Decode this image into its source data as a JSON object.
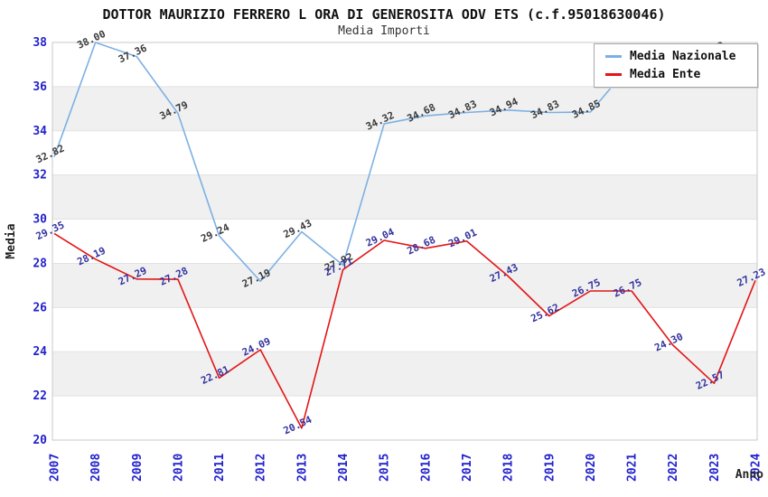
{
  "title": "DOTTOR MAURIZIO FERRERO L ORA DI GENEROSITA ODV ETS (c.f.95018630046)",
  "subtitle": "Media Importi",
  "colors": {
    "nazionale_line": "#7cb0e4",
    "ente_line": "#e31515",
    "tick_label_blue": "#2222cc",
    "band_gray": "#f0f0f0",
    "gridline": "#e2e2e2",
    "plot_border": "#c9c9c9"
  },
  "chart_data": {
    "type": "line",
    "title": "DOTTOR MAURIZIO FERRERO L ORA DI GENEROSITA ODV ETS (c.f.95018630046)",
    "subtitle": "Media Importi",
    "x": [
      2007,
      2008,
      2009,
      2010,
      2011,
      2012,
      2013,
      2014,
      2015,
      2016,
      2017,
      2018,
      2019,
      2020,
      2021,
      2022,
      2023,
      2024
    ],
    "xlabel": "Anno",
    "ylabel": "Media",
    "ylim": [
      20,
      38
    ],
    "ytick_step": 2,
    "grid": "horizontal-gridlines-with-alternating-bands",
    "legend_position": "top-right",
    "series": [
      {
        "name": "Media Nazionale",
        "color": "#7cb0e4",
        "label_color": "#3a3a3a",
        "values": [
          32.82,
          38.0,
          37.36,
          34.79,
          29.24,
          27.19,
          29.43,
          27.92,
          34.32,
          34.68,
          34.83,
          34.94,
          34.83,
          34.85,
          37.05,
          null,
          37.49,
          null
        ]
      },
      {
        "name": "Media Ente",
        "color": "#e31515",
        "label_color": "#3333a0",
        "values": [
          29.35,
          28.19,
          27.29,
          27.28,
          22.81,
          24.09,
          20.54,
          27.71,
          29.04,
          28.68,
          29.01,
          27.43,
          25.62,
          26.75,
          26.75,
          24.3,
          22.57,
          27.23
        ]
      }
    ]
  }
}
